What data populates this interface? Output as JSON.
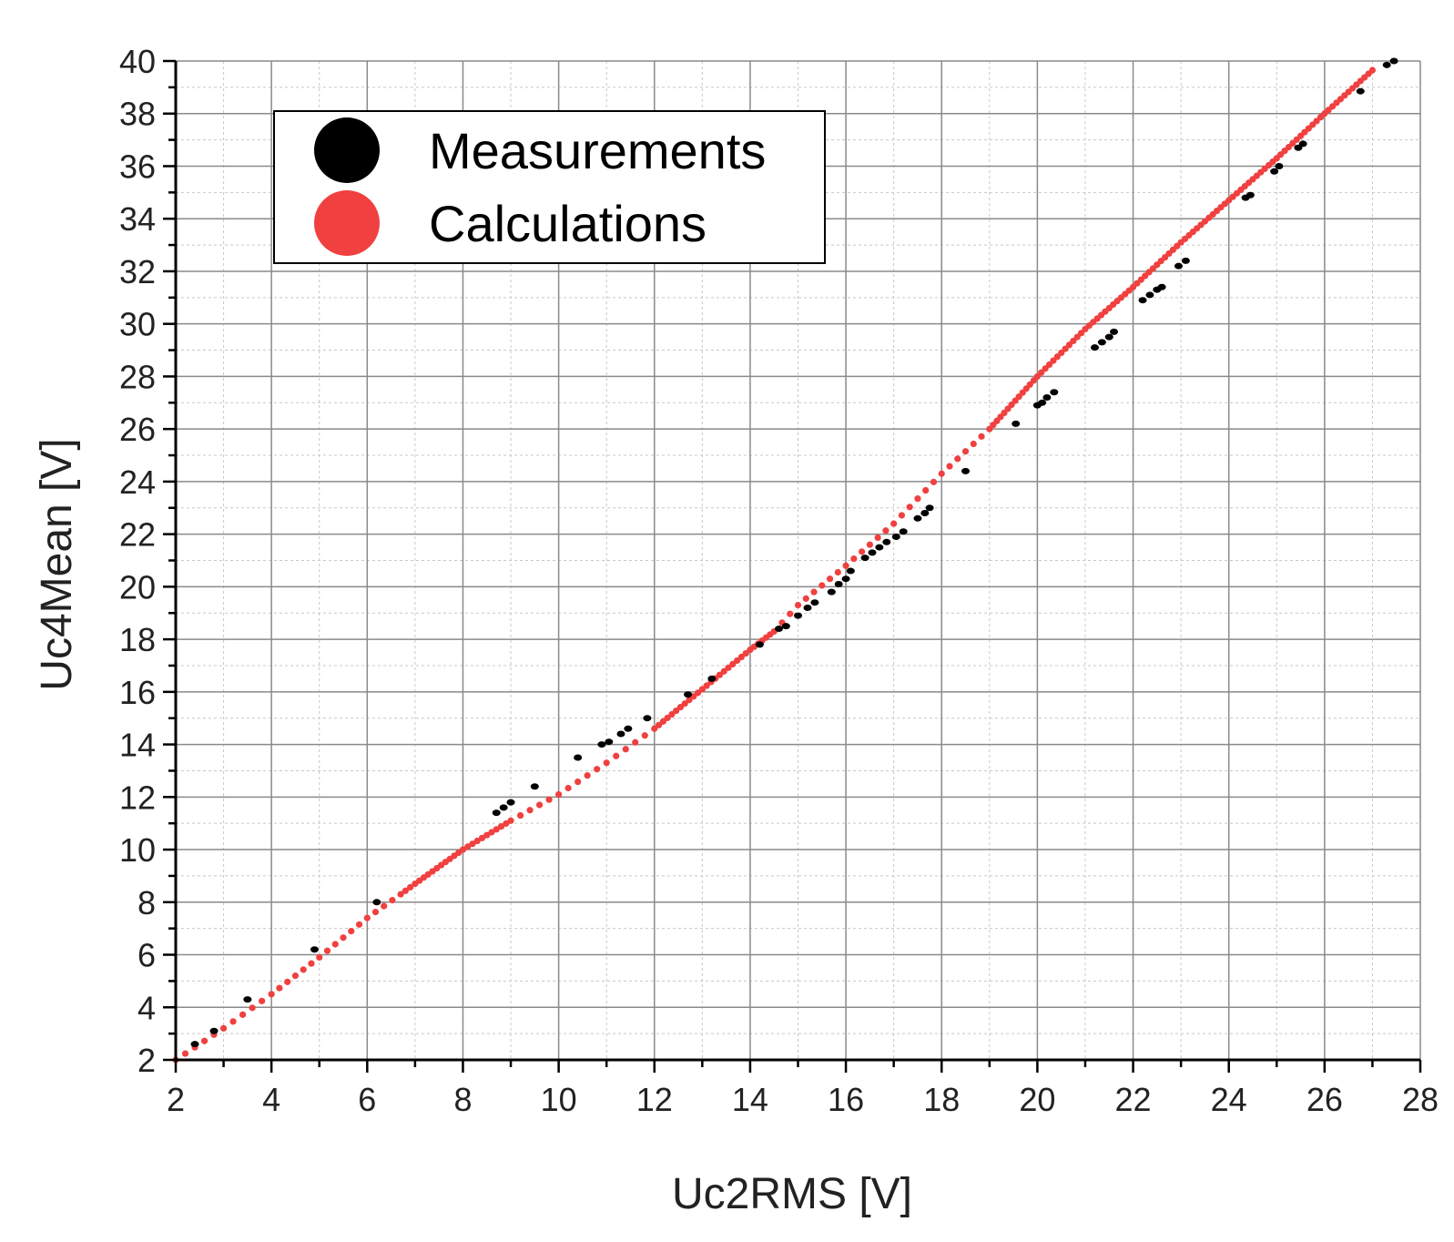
{
  "chart_data": {
    "type": "scatter",
    "xlabel": "Uc2RMS [V]",
    "ylabel": "Uc4Mean [V]",
    "xlim": [
      2,
      28
    ],
    "ylim": [
      2,
      40
    ],
    "x_ticks": [
      "2",
      "4",
      "6",
      "8",
      "10",
      "12",
      "14",
      "16",
      "18",
      "20",
      "22",
      "24",
      "26",
      "28"
    ],
    "y_ticks": [
      "2",
      "4",
      "6",
      "8",
      "10",
      "12",
      "14",
      "16",
      "18",
      "20",
      "22",
      "24",
      "26",
      "28",
      "30",
      "32",
      "34",
      "36",
      "38",
      "40"
    ],
    "grid": true,
    "legend_position": "top-left",
    "series": [
      {
        "name": "Measurements",
        "color": "#000000",
        "points": [
          [
            2.4,
            2.6
          ],
          [
            2.8,
            3.1
          ],
          [
            3.5,
            4.3
          ],
          [
            4.9,
            6.2
          ],
          [
            6.2,
            8.0
          ],
          [
            8.7,
            11.4
          ],
          [
            8.85,
            11.6
          ],
          [
            9.0,
            11.8
          ],
          [
            9.5,
            12.4
          ],
          [
            10.4,
            13.5
          ],
          [
            10.9,
            14.0
          ],
          [
            11.05,
            14.1
          ],
          [
            11.3,
            14.4
          ],
          [
            11.45,
            14.6
          ],
          [
            11.85,
            15.0
          ],
          [
            12.7,
            15.9
          ],
          [
            13.2,
            16.5
          ],
          [
            14.2,
            17.8
          ],
          [
            14.6,
            18.4
          ],
          [
            14.75,
            18.5
          ],
          [
            15.0,
            18.9
          ],
          [
            15.2,
            19.2
          ],
          [
            15.35,
            19.4
          ],
          [
            15.7,
            19.8
          ],
          [
            15.85,
            20.1
          ],
          [
            16.0,
            20.3
          ],
          [
            16.1,
            20.6
          ],
          [
            16.4,
            21.1
          ],
          [
            16.55,
            21.3
          ],
          [
            16.7,
            21.5
          ],
          [
            16.85,
            21.7
          ],
          [
            17.05,
            21.9
          ],
          [
            17.2,
            22.1
          ],
          [
            17.5,
            22.6
          ],
          [
            17.65,
            22.8
          ],
          [
            17.75,
            23.0
          ],
          [
            18.5,
            24.4
          ],
          [
            19.55,
            26.2
          ],
          [
            20.0,
            26.9
          ],
          [
            20.1,
            27.0
          ],
          [
            20.2,
            27.2
          ],
          [
            20.35,
            27.4
          ],
          [
            21.2,
            29.1
          ],
          [
            21.35,
            29.3
          ],
          [
            21.5,
            29.5
          ],
          [
            21.6,
            29.7
          ],
          [
            22.2,
            30.9
          ],
          [
            22.35,
            31.1
          ],
          [
            22.5,
            31.3
          ],
          [
            22.6,
            31.4
          ],
          [
            22.95,
            32.2
          ],
          [
            23.1,
            32.4
          ],
          [
            24.35,
            34.8
          ],
          [
            24.45,
            34.9
          ],
          [
            24.95,
            35.8
          ],
          [
            25.05,
            36.0
          ],
          [
            25.45,
            36.7
          ],
          [
            25.55,
            36.85
          ],
          [
            26.75,
            38.85
          ],
          [
            27.3,
            39.85
          ],
          [
            27.45,
            40.0
          ]
        ]
      },
      {
        "name": "Calculations",
        "color": "#f04040",
        "points": [
          [
            2.0,
            2.0
          ],
          [
            3.0,
            3.2
          ],
          [
            4.0,
            4.5
          ],
          [
            5.0,
            5.9
          ],
          [
            6.0,
            7.4
          ],
          [
            6.7,
            8.3
          ],
          [
            7.0,
            8.7
          ],
          [
            8.0,
            10.0
          ],
          [
            9.0,
            11.1
          ],
          [
            10.0,
            12.1
          ],
          [
            11.0,
            13.3
          ],
          [
            12.0,
            14.6
          ],
          [
            13.0,
            16.1
          ],
          [
            14.0,
            17.6
          ],
          [
            14.5,
            18.3
          ],
          [
            15.0,
            19.3
          ],
          [
            16.0,
            20.8
          ],
          [
            17.0,
            22.4
          ],
          [
            18.0,
            24.3
          ],
          [
            19.0,
            26.0
          ],
          [
            20.0,
            28.0
          ],
          [
            21.0,
            29.8
          ],
          [
            22.0,
            31.4
          ],
          [
            23.0,
            33.1
          ],
          [
            24.0,
            34.7
          ],
          [
            25.0,
            36.3
          ],
          [
            26.0,
            38.0
          ],
          [
            27.0,
            39.65
          ]
        ]
      }
    ]
  }
}
